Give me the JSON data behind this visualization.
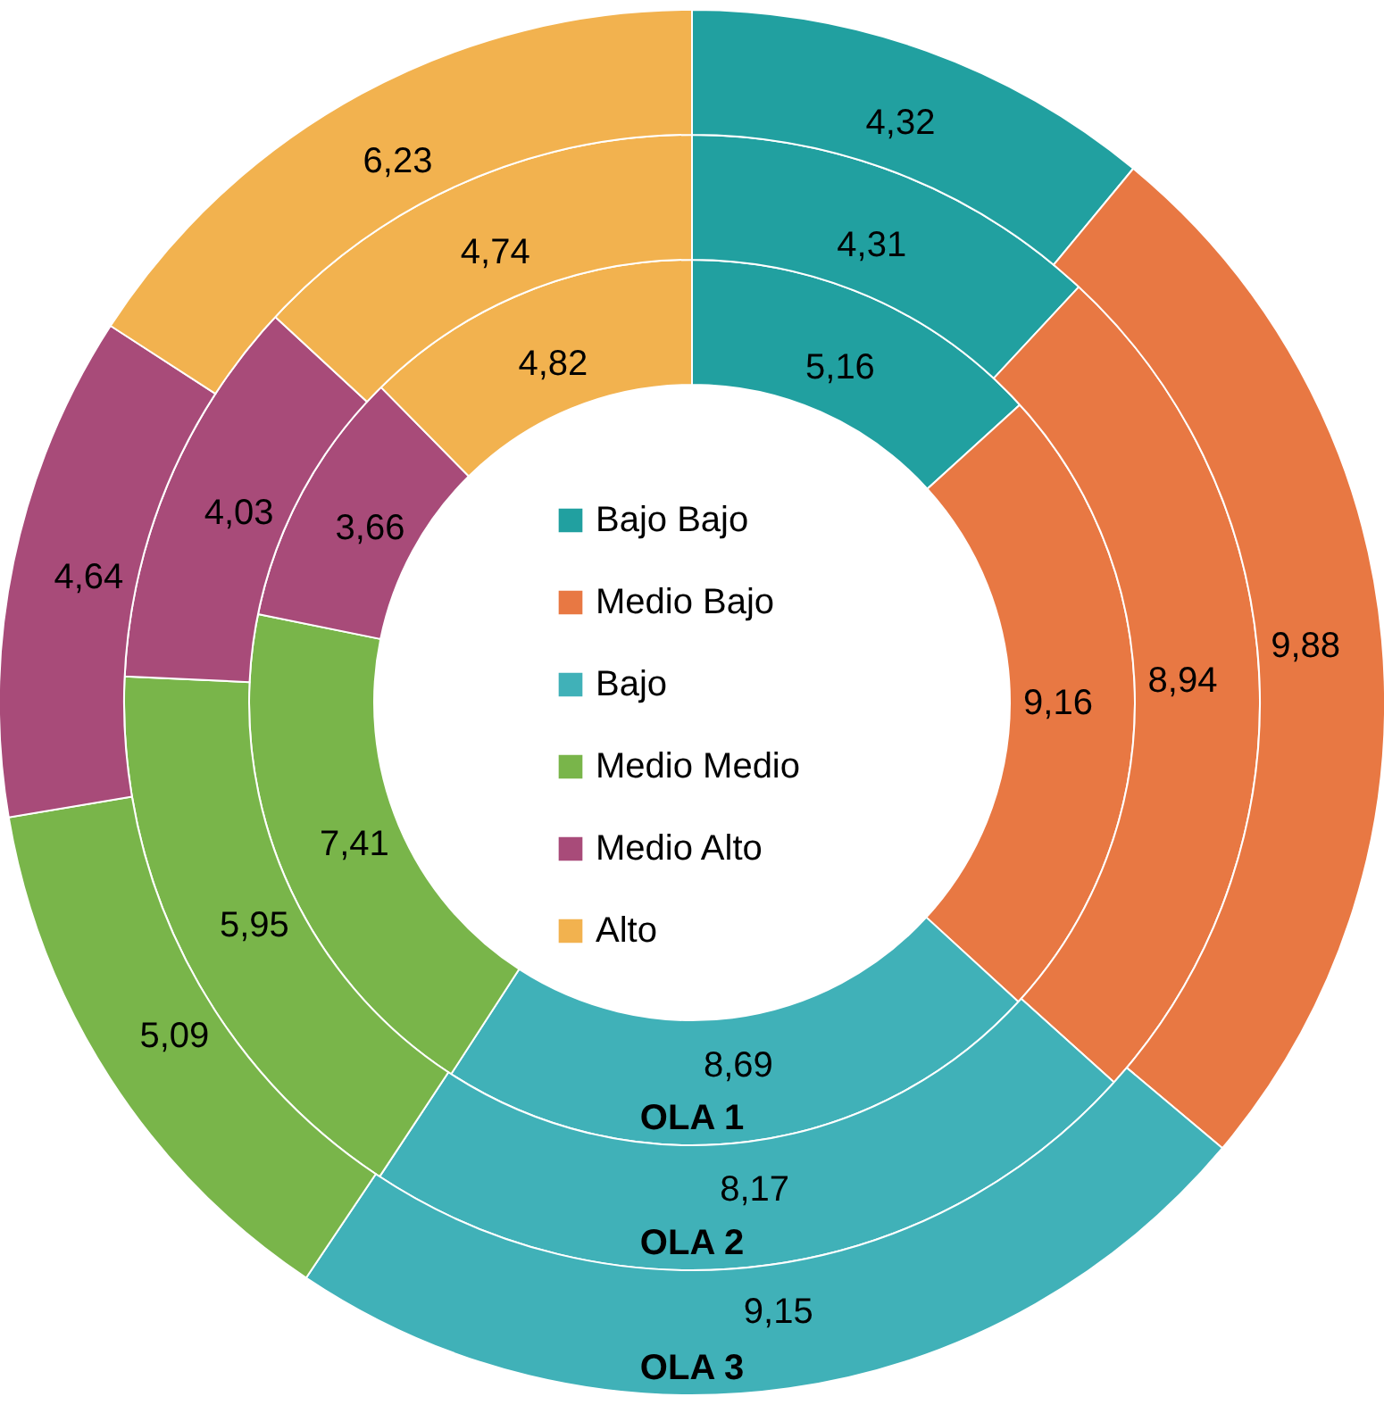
{
  "chart_data": {
    "type": "donut",
    "categories": [
      "Bajo Bajo",
      "Medio Bajo",
      "Bajo",
      "Medio Medio",
      "Medio Alto",
      "Alto"
    ],
    "colors": [
      "#21a0a0",
      "#e87843",
      "#40b1b8",
      "#79b54a",
      "#a84b79",
      "#f2b24f"
    ],
    "series": [
      {
        "name": "OLA 1",
        "values": [
          5.16,
          9.16,
          8.69,
          7.41,
          3.66,
          4.82
        ],
        "value_labels": [
          "5,16",
          "9,16",
          "8,69",
          "7,41",
          "3,66",
          "4,82"
        ]
      },
      {
        "name": "OLA 2",
        "values": [
          4.31,
          8.94,
          8.17,
          5.95,
          4.03,
          4.74
        ],
        "value_labels": [
          "4,31",
          "8,94",
          "8,17",
          "5,95",
          "4,03",
          "4,74"
        ]
      },
      {
        "name": "OLA 3",
        "values": [
          4.32,
          9.88,
          9.15,
          5.09,
          4.64,
          6.23
        ],
        "value_labels": [
          "4,32",
          "9,88",
          "9,15",
          "5,09",
          "4,64",
          "6,23"
        ]
      }
    ],
    "legend": "center"
  }
}
